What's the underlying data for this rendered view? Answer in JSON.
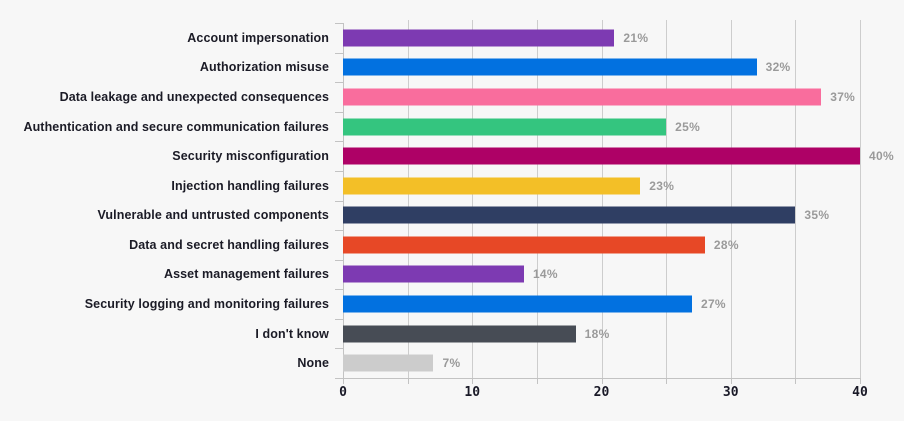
{
  "chart_data": {
    "type": "bar",
    "orientation": "horizontal",
    "title": "",
    "xlabel": "",
    "ylabel": "",
    "categories": [
      "Account impersonation",
      "Authorization misuse",
      "Data leakage and unexpected consequences",
      "Authentication and secure communication failures",
      "Security misconfiguration",
      "Injection handling failures",
      "Vulnerable and untrusted components",
      "Data and secret handling failures",
      "Asset management failures",
      "Security logging and monitoring failures",
      "I don't know",
      "None"
    ],
    "values": [
      21,
      32,
      37,
      25,
      40,
      23,
      35,
      28,
      14,
      27,
      18,
      7
    ],
    "value_labels": [
      "21%",
      "32%",
      "37%",
      "25%",
      "40%",
      "23%",
      "35%",
      "28%",
      "14%",
      "27%",
      "18%",
      "7%"
    ],
    "bar_colors": [
      "#7d3ab2",
      "#0271e0",
      "#f96d9d",
      "#34c57f",
      "#ae0166",
      "#f3bf27",
      "#2f3e63",
      "#e74826",
      "#7d3ab2",
      "#0271e0",
      "#474c55",
      "#cccccc"
    ],
    "xlim": [
      0,
      40
    ],
    "x_tick_labels": [
      "0",
      "10",
      "20",
      "30",
      "40"
    ],
    "x_tick_values": [
      0,
      10,
      20,
      30,
      40
    ],
    "minor_grid_step": 5,
    "grid": true,
    "legend": false,
    "theme": {
      "background": "#f7f7f7",
      "grid_color": "#cdcdcd",
      "axis_color": "#c3c3c3",
      "category_label_color": "#1b1b26",
      "value_label_color": "#9a9a9a",
      "axis_number_color": "#191927"
    }
  }
}
